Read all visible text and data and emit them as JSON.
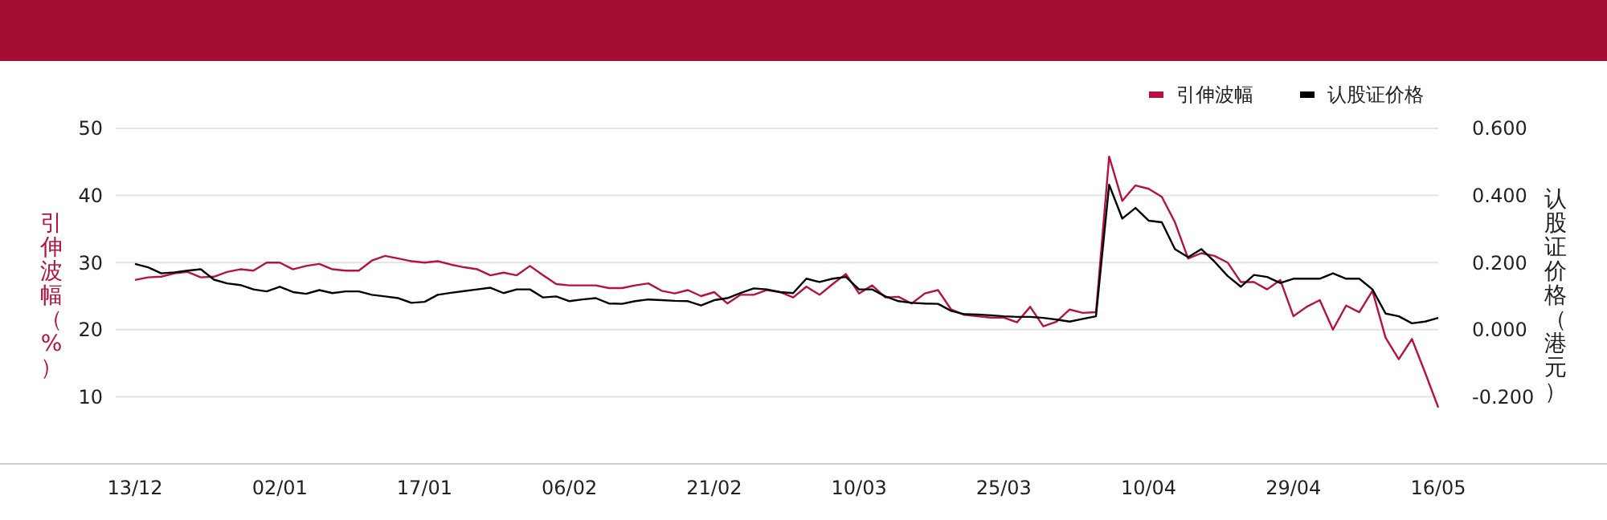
{
  "chart_data": {
    "type": "line",
    "ylabel": "引伸波幅（%）",
    "y2label": "认股证价格（港元）",
    "categories": [
      "13/12",
      null,
      null,
      null,
      null,
      null,
      null,
      null,
      null,
      null,
      null,
      "02/01",
      null,
      null,
      null,
      null,
      null,
      null,
      null,
      null,
      null,
      null,
      "17/01",
      null,
      null,
      null,
      null,
      null,
      null,
      null,
      null,
      null,
      null,
      "06/02",
      null,
      null,
      null,
      null,
      null,
      null,
      null,
      null,
      null,
      null,
      "21/02",
      null,
      null,
      null,
      null,
      null,
      null,
      null,
      null,
      null,
      null,
      "10/03",
      null,
      null,
      null,
      null,
      null,
      null,
      null,
      null,
      null,
      null,
      "25/03",
      null,
      null,
      null,
      null,
      null,
      null,
      null,
      null,
      null,
      null,
      "10/04",
      null,
      null,
      null,
      null,
      null,
      null,
      null,
      null,
      null,
      null,
      "29/04",
      null,
      null,
      null,
      null,
      null,
      null,
      null,
      null,
      null,
      null,
      "16/05"
    ],
    "series": [
      {
        "name": "引伸波幅",
        "color": "#b5123e",
        "values": [
          27.4,
          27.8,
          27.9,
          28.4,
          28.6,
          27.8,
          27.9,
          28.6,
          29,
          28.8,
          30,
          30,
          29,
          29.5,
          29.8,
          29,
          28.8,
          28.8,
          30.3,
          31,
          30.6,
          30.2,
          30,
          30.2,
          29.7,
          29.3,
          29,
          28.1,
          28.5,
          28.1,
          29.5,
          28.1,
          26.8,
          26.6,
          26.6,
          26.6,
          26.2,
          26.2,
          26.6,
          26.9,
          25.8,
          25.4,
          25.9,
          25,
          25.6,
          23.9,
          25.2,
          25.2,
          25.9,
          25.6,
          24.8,
          26.4,
          25.2,
          26.8,
          28.3,
          25.4,
          26.6,
          24.8,
          24.9,
          23.9,
          25.4,
          25.9,
          23,
          22.2,
          22,
          21.8,
          21.8,
          21.1,
          23.4,
          20.5,
          21.2,
          23,
          22.5,
          22.6,
          45.8,
          39.2,
          41.5,
          41,
          39.8,
          36,
          30.6,
          31.4,
          31,
          30,
          27.1,
          27.1,
          26,
          27.4,
          22,
          23.4,
          24.4,
          20,
          23.6,
          22.6,
          25.8,
          18.8,
          15.6,
          18.6,
          13.6,
          8.4
        ]
      },
      {
        "name": "认股证价格",
        "color": "#000000",
        "axis": "y2",
        "values": [
          0.196,
          0.186,
          0.168,
          0.171,
          0.176,
          0.18,
          0.149,
          0.138,
          0.133,
          0.12,
          0.114,
          0.128,
          0.112,
          0.107,
          0.118,
          0.109,
          0.114,
          0.114,
          0.104,
          0.099,
          0.094,
          0.08,
          0.083,
          0.104,
          0.11,
          0.115,
          0.12,
          0.125,
          0.109,
          0.12,
          0.12,
          0.096,
          0.099,
          0.085,
          0.09,
          0.094,
          0.078,
          0.077,
          0.085,
          0.09,
          0.088,
          0.086,
          0.085,
          0.072,
          0.088,
          0.094,
          0.109,
          0.123,
          0.12,
          0.112,
          0.109,
          0.152,
          0.142,
          0.152,
          0.157,
          0.12,
          0.12,
          0.099,
          0.085,
          0.08,
          0.078,
          0.077,
          0.056,
          0.046,
          0.045,
          0.043,
          0.04,
          0.038,
          0.038,
          0.035,
          0.03,
          0.024,
          0.032,
          0.04,
          0.432,
          0.331,
          0.363,
          0.325,
          0.32,
          0.24,
          0.216,
          0.24,
          0.203,
          0.16,
          0.128,
          0.163,
          0.157,
          0.139,
          0.152,
          0.152,
          0.152,
          0.168,
          0.152,
          0.152,
          0.12,
          0.048,
          0.04,
          0.019,
          0.024,
          0.035
        ]
      }
    ],
    "ylim": [
      0,
      50
    ],
    "yticks": [
      {
        "value": 0,
        "label": null
      },
      10,
      20,
      30,
      40,
      50
    ],
    "y2lim": [
      -0.4,
      0.6
    ],
    "y2ticks": [
      {
        "value": -0.2,
        "label": "-0.200"
      },
      {
        "value": 0,
        "label": "0.000"
      },
      {
        "value": 0.2,
        "label": "0.200"
      },
      {
        "value": 0.4,
        "label": "0.400"
      },
      {
        "value": 0.6,
        "label": "0.600"
      }
    ],
    "grid": "y",
    "legend": "top right",
    "marker": "none",
    "line_style": "solid"
  }
}
